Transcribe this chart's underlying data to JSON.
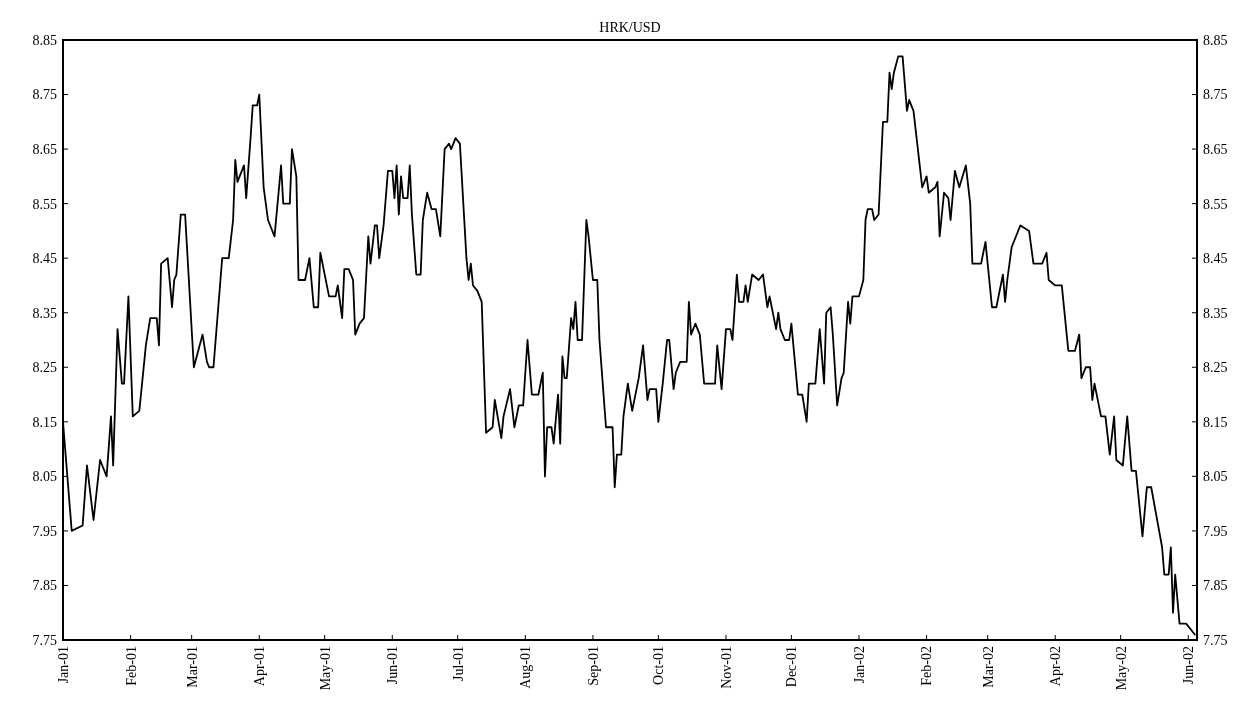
{
  "chart_data": {
    "type": "line",
    "title": "HRK/USD",
    "color": "#000000",
    "line_style": "solid",
    "grid": false,
    "x": [
      "2001-01-01",
      "2001-01-05",
      "2001-01-10",
      "2001-01-12",
      "2001-01-15",
      "2001-01-18",
      "2001-01-21",
      "2001-01-23",
      "2001-01-24",
      "2001-01-26",
      "2001-01-28",
      "2001-01-29",
      "2001-01-31",
      "2001-02-02",
      "2001-02-05",
      "2001-02-08",
      "2001-02-10",
      "2001-02-13",
      "2001-02-14",
      "2001-02-15",
      "2001-02-18",
      "2001-02-20",
      "2001-02-21",
      "2001-02-22",
      "2001-02-24",
      "2001-02-26",
      "2001-03-02",
      "2001-03-06",
      "2001-03-08",
      "2001-03-09",
      "2001-03-11",
      "2001-03-15",
      "2001-03-18",
      "2001-03-20",
      "2001-03-21",
      "2001-03-22",
      "2001-03-25",
      "2001-03-26",
      "2001-03-28",
      "2001-03-29",
      "2001-03-31",
      "2001-04-01",
      "2001-04-03",
      "2001-04-05",
      "2001-04-08",
      "2001-04-11",
      "2001-04-12",
      "2001-04-15",
      "2001-04-16",
      "2001-04-18",
      "2001-04-19",
      "2001-04-22",
      "2001-04-24",
      "2001-04-26",
      "2001-04-28",
      "2001-04-29",
      "2001-05-03",
      "2001-05-06",
      "2001-05-07",
      "2001-05-09",
      "2001-05-10",
      "2001-05-12",
      "2001-05-14",
      "2001-05-15",
      "2001-05-17",
      "2001-05-19",
      "2001-05-21",
      "2001-05-22",
      "2001-05-24",
      "2001-05-25",
      "2001-05-26",
      "2001-05-28",
      "2001-05-30",
      "2001-06-01",
      "2001-06-02",
      "2001-06-03",
      "2001-06-04",
      "2001-06-05",
      "2001-06-06",
      "2001-06-08",
      "2001-06-09",
      "2001-06-10",
      "2001-06-12",
      "2001-06-14",
      "2001-06-15",
      "2001-06-17",
      "2001-06-19",
      "2001-06-21",
      "2001-06-23",
      "2001-06-25",
      "2001-06-27",
      "2001-06-28",
      "2001-06-30",
      "2001-07-02",
      "2001-07-05",
      "2001-07-06",
      "2001-07-07",
      "2001-07-08",
      "2001-07-10",
      "2001-07-12",
      "2001-07-14",
      "2001-07-17",
      "2001-07-18",
      "2001-07-21",
      "2001-07-22",
      "2001-07-25",
      "2001-07-27",
      "2001-07-29",
      "2001-07-31",
      "2001-08-02",
      "2001-08-04",
      "2001-08-07",
      "2001-08-09",
      "2001-08-10",
      "2001-08-11",
      "2001-08-13",
      "2001-08-14",
      "2001-08-16",
      "2001-08-17",
      "2001-08-18",
      "2001-08-19",
      "2001-08-20",
      "2001-08-22",
      "2001-08-23",
      "2001-08-24",
      "2001-08-25",
      "2001-08-27",
      "2001-08-29",
      "2001-08-30",
      "2001-09-01",
      "2001-09-03",
      "2001-09-04",
      "2001-09-07",
      "2001-09-10",
      "2001-09-11",
      "2001-09-12",
      "2001-09-14",
      "2001-09-15",
      "2001-09-17",
      "2001-09-19",
      "2001-09-22",
      "2001-09-24",
      "2001-09-26",
      "2001-09-27",
      "2001-09-30",
      "2001-10-01",
      "2001-10-03",
      "2001-10-05",
      "2001-10-06",
      "2001-10-08",
      "2001-10-09",
      "2001-10-11",
      "2001-10-14",
      "2001-10-15",
      "2001-10-16",
      "2001-10-18",
      "2001-10-20",
      "2001-10-22",
      "2001-10-27",
      "2001-10-28",
      "2001-10-30",
      "2001-11-01",
      "2001-11-03",
      "2001-11-04",
      "2001-11-06",
      "2001-11-07",
      "2001-11-09",
      "2001-11-10",
      "2001-11-11",
      "2001-11-13",
      "2001-11-16",
      "2001-11-18",
      "2001-11-20",
      "2001-11-21",
      "2001-11-24",
      "2001-11-25",
      "2001-11-26",
      "2001-11-28",
      "2001-11-30",
      "2001-12-01",
      "2001-12-04",
      "2001-12-06",
      "2001-12-08",
      "2001-12-09",
      "2001-12-12",
      "2001-12-14",
      "2001-12-16",
      "2001-12-17",
      "2001-12-19",
      "2001-12-20",
      "2001-12-22",
      "2001-12-24",
      "2001-12-25",
      "2001-12-27",
      "2001-12-28",
      "2001-12-29",
      "2002-01-01",
      "2002-01-03",
      "2002-01-04",
      "2002-01-05",
      "2002-01-07",
      "2002-01-08",
      "2002-01-10",
      "2002-01-12",
      "2002-01-14",
      "2002-01-15",
      "2002-01-16",
      "2002-01-17",
      "2002-01-19",
      "2002-01-21",
      "2002-01-23",
      "2002-01-24",
      "2002-01-26",
      "2002-01-28",
      "2002-01-30",
      "2002-02-01",
      "2002-02-02",
      "2002-02-05",
      "2002-02-06",
      "2002-02-07",
      "2002-02-09",
      "2002-02-11",
      "2002-02-12",
      "2002-02-14",
      "2002-02-16",
      "2002-02-19",
      "2002-02-21",
      "2002-02-22",
      "2002-02-26",
      "2002-02-28",
      "2002-03-03",
      "2002-03-05",
      "2002-03-08",
      "2002-03-09",
      "2002-03-10",
      "2002-03-12",
      "2002-03-16",
      "2002-03-20",
      "2002-03-22",
      "2002-03-26",
      "2002-03-28",
      "2002-03-29",
      "2002-04-01",
      "2002-04-04",
      "2002-04-07",
      "2002-04-10",
      "2002-04-12",
      "2002-04-13",
      "2002-04-15",
      "2002-04-17",
      "2002-04-18",
      "2002-04-19",
      "2002-04-22",
      "2002-04-24",
      "2002-04-26",
      "2002-04-28",
      "2002-04-29",
      "2002-05-02",
      "2002-05-04",
      "2002-05-06",
      "2002-05-08",
      "2002-05-11",
      "2002-05-13",
      "2002-05-15",
      "2002-05-20",
      "2002-05-21",
      "2002-05-23",
      "2002-05-24",
      "2002-05-25",
      "2002-05-26",
      "2002-05-28",
      "2002-05-31",
      "2002-06-04"
    ],
    "values": [
      8.15,
      7.95,
      7.96,
      8.07,
      7.97,
      8.08,
      8.05,
      8.16,
      8.07,
      8.32,
      8.22,
      8.22,
      8.38,
      8.16,
      8.17,
      8.29,
      8.34,
      8.34,
      8.29,
      8.44,
      8.45,
      8.36,
      8.41,
      8.42,
      8.53,
      8.53,
      8.25,
      8.31,
      8.26,
      8.25,
      8.25,
      8.45,
      8.45,
      8.52,
      8.63,
      8.59,
      8.62,
      8.56,
      8.67,
      8.73,
      8.73,
      8.75,
      8.58,
      8.52,
      8.49,
      8.62,
      8.55,
      8.55,
      8.65,
      8.6,
      8.41,
      8.41,
      8.45,
      8.36,
      8.36,
      8.46,
      8.38,
      8.38,
      8.4,
      8.34,
      8.43,
      8.43,
      8.41,
      8.31,
      8.33,
      8.34,
      8.49,
      8.44,
      8.51,
      8.51,
      8.45,
      8.51,
      8.61,
      8.61,
      8.56,
      8.62,
      8.53,
      8.6,
      8.56,
      8.56,
      8.62,
      8.53,
      8.42,
      8.42,
      8.52,
      8.57,
      8.54,
      8.54,
      8.49,
      8.65,
      8.66,
      8.65,
      8.67,
      8.66,
      8.45,
      8.41,
      8.44,
      8.4,
      8.39,
      8.37,
      8.13,
      8.14,
      8.19,
      8.12,
      8.16,
      8.21,
      8.14,
      8.18,
      8.18,
      8.3,
      8.2,
      8.2,
      8.24,
      8.05,
      8.14,
      8.14,
      8.11,
      8.2,
      8.11,
      8.27,
      8.23,
      8.23,
      8.34,
      8.32,
      8.37,
      8.3,
      8.3,
      8.52,
      8.49,
      8.41,
      8.41,
      8.3,
      8.14,
      8.14,
      8.03,
      8.09,
      8.09,
      8.16,
      8.22,
      8.17,
      8.23,
      8.29,
      8.19,
      8.21,
      8.21,
      8.15,
      8.22,
      8.3,
      8.3,
      8.21,
      8.24,
      8.26,
      8.26,
      8.37,
      8.31,
      8.33,
      8.31,
      8.22,
      8.22,
      8.29,
      8.21,
      8.32,
      8.32,
      8.3,
      8.42,
      8.37,
      8.37,
      8.4,
      8.37,
      8.42,
      8.41,
      8.42,
      8.36,
      8.38,
      8.32,
      8.35,
      8.32,
      8.3,
      8.3,
      8.33,
      8.2,
      8.2,
      8.15,
      8.22,
      8.22,
      8.32,
      8.22,
      8.35,
      8.36,
      8.31,
      8.18,
      8.23,
      8.24,
      8.37,
      8.33,
      8.38,
      8.38,
      8.41,
      8.52,
      8.54,
      8.54,
      8.52,
      8.53,
      8.7,
      8.7,
      8.79,
      8.76,
      8.79,
      8.82,
      8.82,
      8.72,
      8.74,
      8.72,
      8.65,
      8.58,
      8.6,
      8.57,
      8.58,
      8.59,
      8.49,
      8.57,
      8.56,
      8.52,
      8.61,
      8.58,
      8.62,
      8.55,
      8.44,
      8.44,
      8.48,
      8.36,
      8.36,
      8.42,
      8.37,
      8.41,
      8.47,
      8.51,
      8.5,
      8.44,
      8.44,
      8.46,
      8.41,
      8.4,
      8.4,
      8.28,
      8.28,
      8.31,
      8.23,
      8.25,
      8.25,
      8.19,
      8.22,
      8.16,
      8.16,
      8.09,
      8.16,
      8.08,
      8.07,
      8.16,
      8.06,
      8.06,
      7.94,
      8.03,
      8.03,
      7.92,
      7.87,
      7.87,
      7.92,
      7.8,
      7.87,
      7.78,
      7.78,
      7.76
    ],
    "xlim": [
      "2001-01-01",
      "2002-06-05"
    ],
    "xticks": [
      {
        "value": "2001-01-01",
        "label": "Jan-01"
      },
      {
        "value": "2001-02-01",
        "label": "Feb-01"
      },
      {
        "value": "2001-03-01",
        "label": "Mar-01"
      },
      {
        "value": "2001-04-01",
        "label": "Apr-01"
      },
      {
        "value": "2001-05-01",
        "label": "May-01"
      },
      {
        "value": "2001-06-01",
        "label": "Jun-01"
      },
      {
        "value": "2001-07-01",
        "label": "Jul-01"
      },
      {
        "value": "2001-08-01",
        "label": "Aug-01"
      },
      {
        "value": "2001-09-01",
        "label": "Sep-01"
      },
      {
        "value": "2001-10-01",
        "label": "Oct-01"
      },
      {
        "value": "2001-11-01",
        "label": "Nov-01"
      },
      {
        "value": "2001-12-01",
        "label": "Dec-01"
      },
      {
        "value": "2002-01-01",
        "label": "Jan-02"
      },
      {
        "value": "2002-02-01",
        "label": "Feb-02"
      },
      {
        "value": "2002-03-01",
        "label": "Mar-02"
      },
      {
        "value": "2002-04-01",
        "label": "Apr-02"
      },
      {
        "value": "2002-05-01",
        "label": "May-02"
      },
      {
        "value": "2002-06-01",
        "label": "Jun-02"
      }
    ],
    "ylim": [
      7.75,
      8.85
    ],
    "yticks": [
      7.75,
      7.85,
      7.95,
      8.05,
      8.15,
      8.25,
      8.35,
      8.45,
      8.55,
      8.65,
      8.75,
      8.85
    ],
    "y2lim": [
      7.75,
      8.85
    ],
    "y2ticks": [
      7.75,
      7.85,
      7.95,
      8.05,
      8.15,
      8.25,
      8.35,
      8.45,
      8.55,
      8.65,
      8.75,
      8.85
    ]
  }
}
